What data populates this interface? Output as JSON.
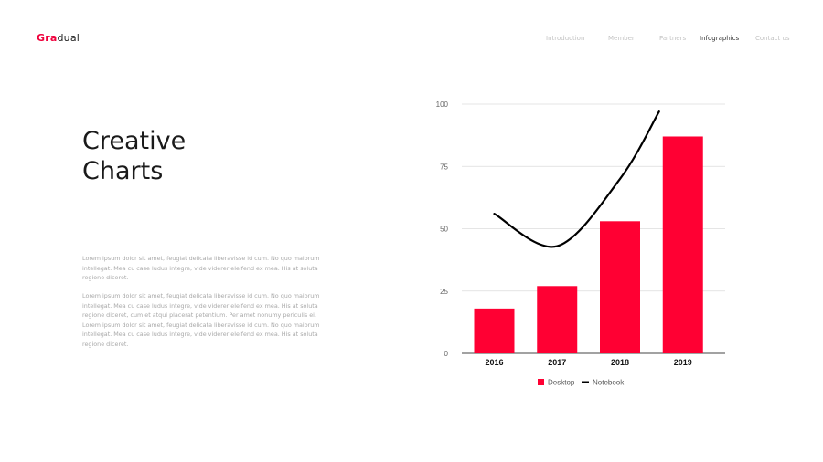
{
  "brand": {
    "accent": "Gra",
    "rest": "dual",
    "accent_color": "#f0003c"
  },
  "nav": {
    "items": [
      {
        "label": "Introduction",
        "active": false
      },
      {
        "label": "Member",
        "active": false
      },
      {
        "label": "Partners",
        "active": false
      },
      {
        "label": "Infographics",
        "active": true
      },
      {
        "label": "Contact us",
        "active": false
      }
    ]
  },
  "hero": {
    "title_line1": "Creative",
    "title_line2": "Charts"
  },
  "body_text": {
    "paragraph1": "Lorem ipsum dolor sit amet, feugiat delicata liberavisse id cum. No quo maiorum intellegat. Mea cu case ludus integre, vide viderer eleifend ex mea. His at soluta regione diceret.",
    "paragraph2": "Lorem ipsum dolor sit amet, feugiat delicata liberavisse id cum. No quo maiorum intellegat. Mea cu case ludus integre, vide viderer eleifend ex mea. His at soluta regione diceret, cum et atqui placerat petentium. Per amet nonumy periculis ei. Lorem ipsum dolor sit amet, feugiat delicata liberavisse id cum. No quo maiorum intellegat. Mea cu case ludus integre, vide viderer eleifend ex mea. His at soluta regione diceret."
  },
  "chart_data": {
    "type": "bar",
    "categories": [
      "2016",
      "2017",
      "2018",
      "2019"
    ],
    "series": [
      {
        "name": "Desktop",
        "kind": "bar",
        "color": "#ff0033",
        "values": [
          18,
          27,
          53,
          87
        ]
      },
      {
        "name": "Notebook",
        "kind": "line",
        "color": "#000000",
        "values": [
          56,
          43,
          70,
          97
        ]
      }
    ],
    "ylim": [
      0,
      100
    ],
    "yticks": [
      0,
      25,
      50,
      75,
      100
    ],
    "grid": true,
    "legend": "bottom",
    "title": "",
    "xlabel": "",
    "ylabel": ""
  }
}
